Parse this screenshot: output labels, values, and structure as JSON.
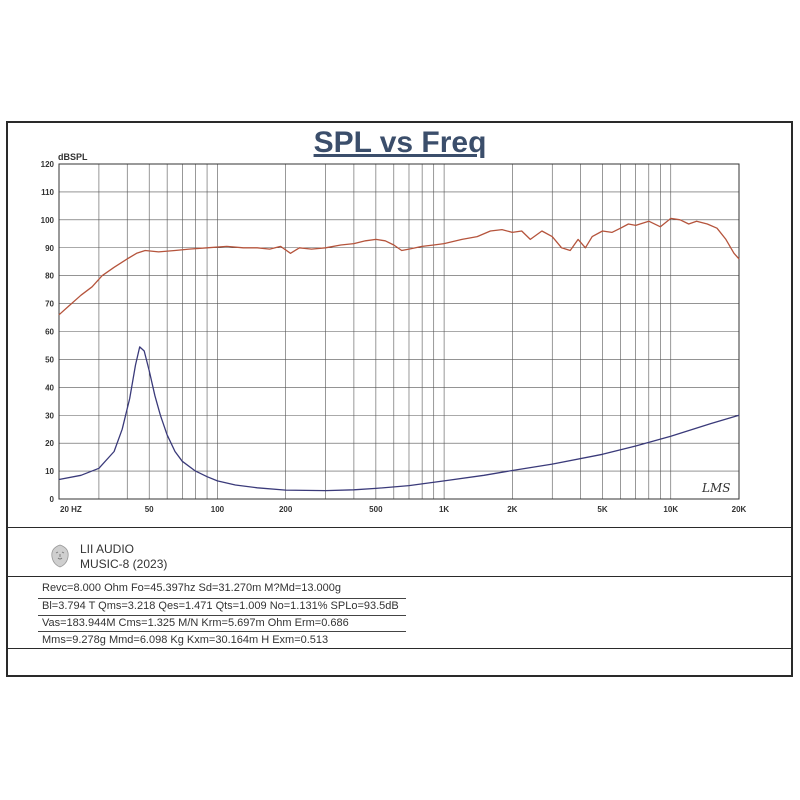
{
  "brand": {
    "name": "LII AUDIO",
    "model": "MUSIC-8 (2023)",
    "logo_icon": "lion-head-logo"
  },
  "watermark": "LMS",
  "parameters": [
    "Revc=8.000 Ohm Fo=45.397hz Sd=31.270m M?Md=13.000g",
    "Bl=3.794 T Qms=3.218 Qes=1.471 Qts=1.009 No=1.131% SPLo=93.5dB",
    "Vas=183.944M Cms=1.325 M/N Krm=5.697m Ohm Erm=0.686",
    "Mms=9.278g Mmd=6.098 Kg Kxm=30.164m H Exm=0.513"
  ],
  "chart_data": {
    "type": "line",
    "title": "SPL vs Freq",
    "ylabel": "dBSPL",
    "xlabel": "",
    "x_scale": "log",
    "xlim": [
      20,
      20000
    ],
    "ylim": [
      0,
      120
    ],
    "grid": true,
    "x_tick_labels": [
      {
        "value": 20,
        "label": "20  HZ"
      },
      {
        "value": 50,
        "label": "50"
      },
      {
        "value": 100,
        "label": "100"
      },
      {
        "value": 200,
        "label": "200"
      },
      {
        "value": 500,
        "label": "500"
      },
      {
        "value": 1000,
        "label": "1K"
      },
      {
        "value": 2000,
        "label": "2K"
      },
      {
        "value": 5000,
        "label": "5K"
      },
      {
        "value": 10000,
        "label": "10K"
      },
      {
        "value": 20000,
        "label": "20K"
      }
    ],
    "y_ticks": [
      0,
      10,
      20,
      30,
      40,
      50,
      60,
      70,
      80,
      90,
      100,
      110,
      120
    ],
    "series": [
      {
        "color": "#b5543c",
        "points": [
          [
            20,
            66
          ],
          [
            22,
            69
          ],
          [
            25,
            73
          ],
          [
            28,
            76
          ],
          [
            31,
            80
          ],
          [
            35,
            83
          ],
          [
            40,
            86
          ],
          [
            44,
            88
          ],
          [
            48,
            89
          ],
          [
            55,
            88.5
          ],
          [
            65,
            89
          ],
          [
            75,
            89.5
          ],
          [
            90,
            90
          ],
          [
            110,
            90.5
          ],
          [
            130,
            90
          ],
          [
            150,
            90
          ],
          [
            170,
            89.5
          ],
          [
            190,
            90.5
          ],
          [
            210,
            88
          ],
          [
            230,
            90
          ],
          [
            260,
            89.5
          ],
          [
            300,
            90
          ],
          [
            350,
            91
          ],
          [
            400,
            91.5
          ],
          [
            450,
            92.5
          ],
          [
            500,
            93
          ],
          [
            550,
            92.5
          ],
          [
            600,
            91
          ],
          [
            650,
            89
          ],
          [
            700,
            89.5
          ],
          [
            800,
            90.5
          ],
          [
            900,
            91
          ],
          [
            1000,
            91.5
          ],
          [
            1200,
            93
          ],
          [
            1400,
            94
          ],
          [
            1600,
            96
          ],
          [
            1800,
            96.5
          ],
          [
            2000,
            95.5
          ],
          [
            2200,
            96
          ],
          [
            2400,
            93
          ],
          [
            2700,
            96
          ],
          [
            3000,
            94
          ],
          [
            3300,
            90
          ],
          [
            3600,
            89
          ],
          [
            3900,
            93
          ],
          [
            4200,
            90
          ],
          [
            4500,
            94
          ],
          [
            5000,
            96
          ],
          [
            5500,
            95.5
          ],
          [
            6000,
            97
          ],
          [
            6500,
            98.5
          ],
          [
            7000,
            98
          ],
          [
            8000,
            99.5
          ],
          [
            9000,
            97.5
          ],
          [
            10000,
            100.5
          ],
          [
            11000,
            100
          ],
          [
            12000,
            98.5
          ],
          [
            13000,
            99.5
          ],
          [
            14500,
            98.5
          ],
          [
            16000,
            97
          ],
          [
            17500,
            93
          ],
          [
            19000,
            88
          ],
          [
            20000,
            86
          ]
        ]
      },
      {
        "color": "#3a3a7a",
        "points": [
          [
            20,
            7
          ],
          [
            25,
            8.5
          ],
          [
            30,
            11
          ],
          [
            35,
            17
          ],
          [
            38,
            25
          ],
          [
            41,
            36
          ],
          [
            43.5,
            48
          ],
          [
            45.4,
            54.5
          ],
          [
            47.5,
            53
          ],
          [
            50,
            46
          ],
          [
            53,
            37
          ],
          [
            56,
            30
          ],
          [
            60,
            23
          ],
          [
            65,
            17
          ],
          [
            70,
            13.5
          ],
          [
            80,
            10
          ],
          [
            90,
            8
          ],
          [
            100,
            6.5
          ],
          [
            120,
            5
          ],
          [
            150,
            4
          ],
          [
            200,
            3.2
          ],
          [
            300,
            3
          ],
          [
            400,
            3.3
          ],
          [
            500,
            3.8
          ],
          [
            700,
            4.8
          ],
          [
            1000,
            6.5
          ],
          [
            1500,
            8.5
          ],
          [
            2000,
            10.2
          ],
          [
            3000,
            12.5
          ],
          [
            5000,
            16
          ],
          [
            7000,
            19
          ],
          [
            10000,
            22.5
          ],
          [
            15000,
            27
          ],
          [
            20000,
            30
          ]
        ]
      }
    ]
  }
}
